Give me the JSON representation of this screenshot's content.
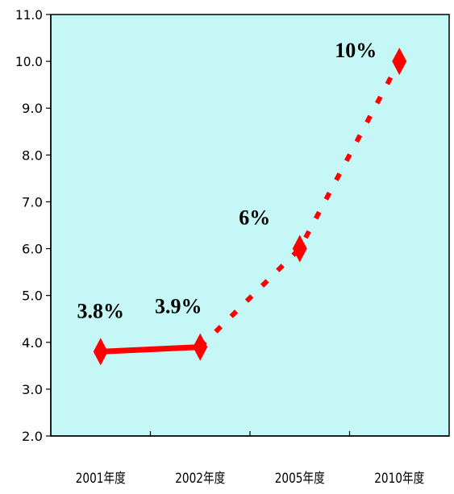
{
  "chart_data": {
    "type": "line",
    "categories": [
      "2001年度",
      "2002年度",
      "2005年度",
      "2010年度"
    ],
    "values": [
      3.8,
      3.9,
      6.0,
      10.0
    ],
    "data_labels": [
      "3.8%",
      "3.9%",
      "6%",
      "10%"
    ],
    "segments": [
      {
        "from": 0,
        "to": 1,
        "style": "solid"
      },
      {
        "from": 1,
        "to": 3,
        "style": "dashed"
      }
    ],
    "ylim": [
      2.0,
      11.0
    ],
    "yticks": [
      "2.0",
      "3.0",
      "4.0",
      "5.0",
      "6.0",
      "7.0",
      "8.0",
      "9.0",
      "10.0",
      "11.0"
    ],
    "grid": false,
    "legend": "none",
    "colors": {
      "plot_background": "#c6f7f7",
      "series": "#ff0000",
      "axis": "#000000"
    },
    "marker": "diamond"
  }
}
